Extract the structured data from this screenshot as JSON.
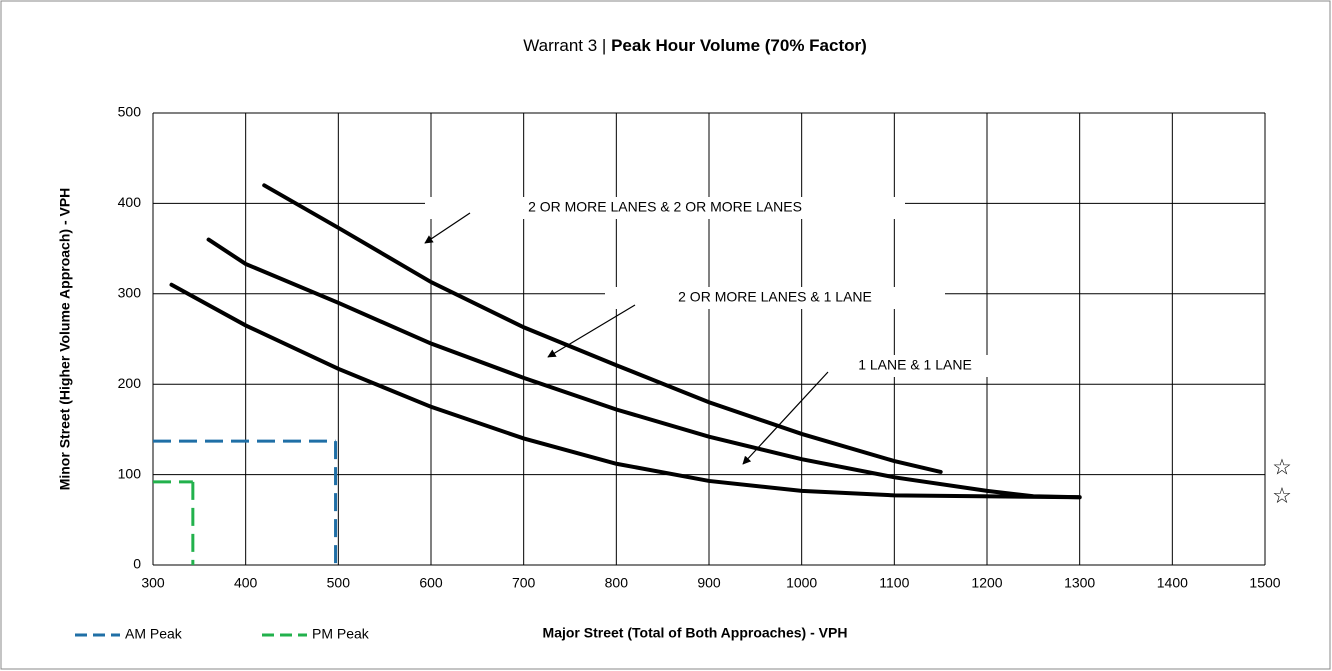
{
  "chart_data": {
    "type": "line",
    "title": [
      "Warrant 3 |",
      "Peak Hour Volume (70% Factor)"
    ],
    "x_label": "Major Street (Total of Both Approaches) - VPH",
    "y_label": "Minor Street (Higher Volume Approach) - VPH",
    "xlim": [
      300,
      1500
    ],
    "xticks": [
      300,
      400,
      500,
      600,
      700,
      800,
      900,
      1000,
      1100,
      1200,
      1300,
      1400,
      1500
    ],
    "ylim": [
      0,
      500
    ],
    "yticks": [
      0,
      100,
      200,
      300,
      400,
      500
    ],
    "grid": true,
    "series": [
      {
        "name": "2 OR MORE LANES & 2 OR MORE LANES",
        "color": "#000000",
        "x": [
          420,
          500,
          600,
          700,
          800,
          900,
          1000,
          1100,
          1150
        ],
        "values": [
          420,
          373,
          313,
          263,
          221,
          180,
          145,
          115,
          103
        ]
      },
      {
        "name": "2 OR MORE LANES & 1 LANE",
        "color": "#000000",
        "x": [
          360,
          400,
          500,
          600,
          700,
          800,
          900,
          1000,
          1100,
          1200,
          1250,
          1300
        ],
        "values": [
          360,
          333,
          290,
          245,
          207,
          172,
          142,
          117,
          97,
          82,
          76,
          75
        ]
      },
      {
        "name": "1 LANE & 1 LANE",
        "color": "#000000",
        "x": [
          320,
          400,
          500,
          600,
          700,
          800,
          900,
          1000,
          1100,
          1300
        ],
        "values": [
          310,
          265,
          217,
          175,
          140,
          112,
          93,
          82,
          77,
          75
        ]
      }
    ],
    "peaks": [
      {
        "name": "AM Peak",
        "color": "#1f6fa6",
        "x": 497,
        "y": 137
      },
      {
        "name": "PM Peak",
        "color": "#22b14c",
        "x": 343,
        "y": 92
      }
    ],
    "markers": [
      {
        "label": "☆",
        "value": 107
      },
      {
        "label": "☆",
        "value": 75
      }
    ]
  }
}
